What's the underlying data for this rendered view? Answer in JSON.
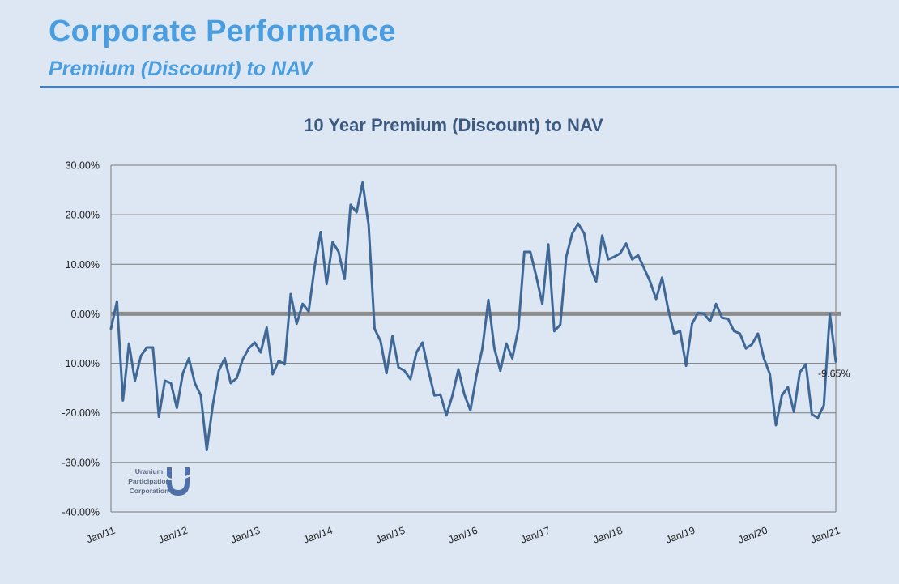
{
  "header": {
    "title": "Corporate Performance",
    "subtitle": "Premium (Discount) to NAV"
  },
  "logo": {
    "lines": [
      "Uranium",
      "Participation",
      "Corporation"
    ],
    "color": "#4f6fa8"
  },
  "colors": {
    "line": "#3f6897",
    "zero_line": "#8c8c8c",
    "grid": "#7a7a7a",
    "header_accent": "#4a9ee0"
  },
  "chart_data": {
    "type": "line",
    "title": "10 Year Premium (Discount) to NAV",
    "xlabel": "",
    "ylabel": "",
    "ylim": [
      -40,
      30
    ],
    "y_ticks": [
      "30.00%",
      "20.00%",
      "10.00%",
      "0.00%",
      "-10.00%",
      "-20.00%",
      "-30.00%",
      "-40.00%"
    ],
    "x_ticks": [
      "Jan/11",
      "Jan/12",
      "Jan/13",
      "Jan/14",
      "Jan/15",
      "Jan/16",
      "Jan/17",
      "Jan/18",
      "Jan/19",
      "Jan/20",
      "Jan/21"
    ],
    "x_range": [
      "2011-01",
      "2021-01"
    ],
    "grid": "horizontal",
    "annotation": {
      "text": "-9.65%",
      "value": -9.65
    },
    "series": [
      {
        "values": [
          -3,
          2.5,
          -17.5,
          -6,
          -13.5,
          -8.5,
          -6.8,
          -6.8,
          -20.8,
          -13.5,
          -14,
          -19,
          -12,
          -9,
          -14,
          -16.5,
          -27.5,
          -18.5,
          -11.5,
          -9,
          -14,
          -13,
          -9.2,
          -7,
          -5.8,
          -7.8,
          -2.8,
          -12.2,
          -9.5,
          -10.2,
          4,
          -2,
          2,
          0.5,
          9.5,
          16.5,
          6,
          14.5,
          12.5,
          7,
          22,
          20.5,
          26.5,
          18,
          -3,
          -5.5,
          -12,
          -4.5,
          -10.8,
          -11.5,
          -13.2,
          -7.8,
          -5.8,
          -11.5,
          -16.5,
          -16.3,
          -20.5,
          -16.5,
          -11.2,
          -16.3,
          -19.5,
          -12.5,
          -7,
          2.8,
          -7,
          -11.5,
          -6,
          -9,
          -3,
          12.5,
          12.5,
          7.5,
          2,
          14,
          -3.5,
          -2.2,
          11.5,
          16.2,
          18.2,
          16.2,
          9.5,
          6.5,
          15.8,
          11,
          11.5,
          12.2,
          14.2,
          11,
          11.8,
          9.2,
          6.5,
          3,
          7.3,
          1,
          -4,
          -3.5,
          -10.5,
          -2,
          0.2,
          0,
          -1.5,
          2,
          -0.8,
          -1,
          -3.5,
          -4,
          -7,
          -6.2,
          -4,
          -9,
          -12.2,
          -22.5,
          -16.5,
          -14.8,
          -19.8,
          -11.8,
          -10.2,
          -20.3,
          -21,
          -18.5,
          0,
          -9.65
        ]
      }
    ]
  }
}
